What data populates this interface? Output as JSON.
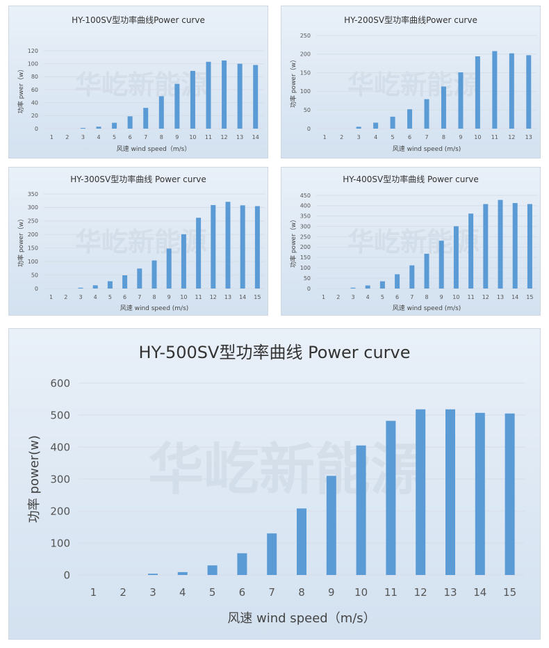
{
  "watermark": "华屹新能源",
  "colors": {
    "bar": "#5b9bd5",
    "panel_top": "#e9f0f8",
    "panel_bottom": "#d3e1f0"
  },
  "chart_data": [
    {
      "type": "bar",
      "title": "HY-100SV型功率曲线Power curve",
      "xlabel": "风速  wind speed（m/s）",
      "ylabel": "功率  pwer（w）",
      "categories": [
        "1",
        "2",
        "3",
        "4",
        "5",
        "6",
        "7",
        "8",
        "9",
        "10",
        "11",
        "12",
        "13",
        "14"
      ],
      "values": [
        0,
        0,
        1,
        3,
        9,
        19,
        32,
        50,
        69,
        89,
        103,
        105,
        100,
        98
      ],
      "ylim": [
        0,
        120
      ],
      "yticks": [
        "0",
        "20",
        "40",
        "60",
        "80",
        "100",
        "120"
      ],
      "grid": true
    },
    {
      "type": "bar",
      "title": "HY-200SV型功率曲线Power  curve",
      "xlabel": "风速 wind speed (m/s)",
      "ylabel": "功率  power（w）",
      "categories": [
        "1",
        "2",
        "3",
        "4",
        "5",
        "6",
        "7",
        "8",
        "9",
        "10",
        "11",
        "12",
        "13"
      ],
      "values": [
        0,
        0,
        5,
        16,
        32,
        52,
        79,
        113,
        151,
        194,
        208,
        202,
        197
      ],
      "ylim": [
        0,
        250
      ],
      "yticks": [
        "0",
        "50",
        "100",
        "150",
        "200",
        "250"
      ],
      "grid": true
    },
    {
      "type": "bar",
      "title": "HY-300SV型功率曲线  Power curve",
      "xlabel": "风速 wind speed (m/s)",
      "ylabel": "功率  power（w）",
      "categories": [
        "1",
        "2",
        "3",
        "4",
        "5",
        "6",
        "7",
        "8",
        "9",
        "10",
        "11",
        "12",
        "13",
        "14",
        "15"
      ],
      "values": [
        0,
        0,
        3,
        12,
        27,
        49,
        74,
        104,
        148,
        201,
        262,
        309,
        321,
        308,
        305
      ],
      "ylim": [
        0,
        350
      ],
      "yticks": [
        "0",
        "50",
        "100",
        "150",
        "200",
        "250",
        "300",
        "350"
      ],
      "grid": true
    },
    {
      "type": "bar",
      "title": "HY-400SV型功率曲线 Power curve",
      "xlabel": "风速 wind speed (m/s)",
      "ylabel": "功率  power（w）",
      "categories": [
        "1",
        "2",
        "3",
        "4",
        "5",
        "6",
        "7",
        "8",
        "9",
        "10",
        "11",
        "12",
        "13",
        "14",
        "15"
      ],
      "values": [
        0,
        0,
        4,
        15,
        35,
        69,
        112,
        168,
        231,
        301,
        362,
        408,
        428,
        413,
        408
      ],
      "ylim": [
        0,
        450
      ],
      "yticks": [
        "0",
        "50",
        "100",
        "150",
        "200",
        "250",
        "300",
        "350",
        "400",
        "450"
      ],
      "grid": true
    },
    {
      "type": "bar",
      "title": "HY-500SV型功率曲线 Power curve",
      "xlabel": "风速 wind speed（m/s）",
      "ylabel": "功率 power(w)",
      "categories": [
        "1",
        "2",
        "3",
        "4",
        "5",
        "6",
        "7",
        "8",
        "9",
        "10",
        "11",
        "12",
        "13",
        "14",
        "15"
      ],
      "values": [
        0,
        0,
        4,
        9,
        30,
        68,
        130,
        208,
        310,
        405,
        482,
        518,
        518,
        507,
        505
      ],
      "ylim": [
        0,
        600
      ],
      "yticks": [
        "0",
        "100",
        "200",
        "300",
        "400",
        "500",
        "600"
      ],
      "grid": true
    }
  ]
}
